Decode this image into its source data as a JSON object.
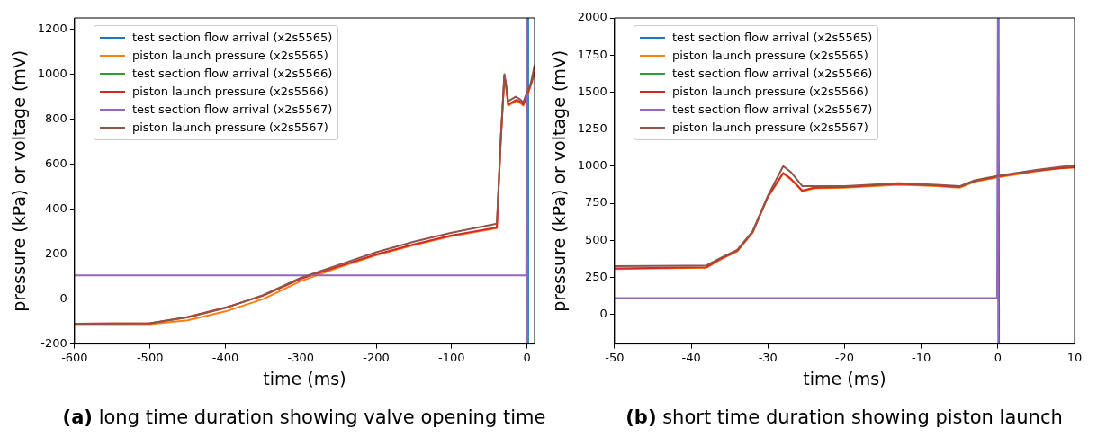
{
  "chart_data": [
    {
      "type": "line",
      "xlabel": "time (ms)",
      "ylabel": "pressure (kPa) or voltage (mV)",
      "annotations": [
        "(a) long time duration showing valve opening time"
      ],
      "xlim": [
        -600,
        10
      ],
      "xticks": [
        -600,
        -500,
        -400,
        -300,
        -200,
        -100,
        0
      ],
      "ylim": [
        -200,
        1250
      ],
      "yticks": [
        -200,
        0,
        200,
        400,
        600,
        800,
        1000,
        1200
      ],
      "legend": "top left",
      "grid": false,
      "marker": "none",
      "line_style": "solid",
      "x": [
        -600,
        -500,
        -450,
        -400,
        -350,
        -300,
        -250,
        -200,
        -150,
        -100,
        -40,
        -35,
        -30,
        -28,
        -25,
        -20,
        -15,
        -10,
        -5,
        0,
        5,
        10
      ],
      "series": [
        {
          "name": "test section flow arrival (x2s5565)",
          "color": "#1f77b4",
          "x": [
            1,
            1.5
          ],
          "values": [
            1250,
            -200
          ]
        },
        {
          "name": "piston launch pressure (x2s5565)",
          "color": "#ff7f0e",
          "values": [
            -112,
            -112,
            -95,
            -55,
            0,
            80,
            140,
            195,
            240,
            280,
            315,
            690,
            990,
            950,
            860,
            870,
            880,
            875,
            860,
            900,
            950,
            1000
          ]
        },
        {
          "name": "test section flow arrival (x2s5566)",
          "color": "#2ca02c",
          "values": [
            null,
            null,
            null,
            null,
            null,
            null,
            null,
            null,
            null,
            null,
            null,
            null,
            null,
            null,
            null,
            null,
            null,
            null,
            null,
            null,
            null,
            null
          ]
        },
        {
          "name": "piston launch pressure (x2s5566)",
          "color": "#d62728",
          "values": [
            -110,
            -108,
            -80,
            -38,
            15,
            90,
            145,
            198,
            243,
            283,
            318,
            695,
            995,
            955,
            865,
            875,
            885,
            880,
            865,
            905,
            955,
            1010
          ]
        },
        {
          "name": "test section flow arrival (x2s5567)",
          "color": "#9467bd",
          "x": [
            -600,
            -1,
            0,
            0.5
          ],
          "values": [
            105,
            105,
            1250,
            -200
          ]
        },
        {
          "name": "piston launch pressure (x2s5567)",
          "color": "#8c564b",
          "values": [
            -110,
            -108,
            -82,
            -40,
            18,
            95,
            152,
            208,
            255,
            295,
            335,
            700,
            1000,
            960,
            880,
            890,
            900,
            890,
            875,
            920,
            960,
            1040
          ]
        }
      ]
    },
    {
      "type": "line",
      "xlabel": "time (ms)",
      "ylabel": "pressure (kPa) or voltage (mV)",
      "annotations": [
        "(b) short time duration showing piston launch"
      ],
      "xlim": [
        -50,
        10
      ],
      "xticks": [
        -50,
        -40,
        -30,
        -20,
        -10,
        0,
        10
      ],
      "ylim": [
        -200,
        2000
      ],
      "yticks": [
        0,
        250,
        500,
        750,
        1000,
        1250,
        1500,
        1750,
        2000
      ],
      "legend": "top left",
      "grid": false,
      "marker": "none",
      "line_style": "solid",
      "x": [
        -50,
        -38,
        -36,
        -34,
        -32,
        -30,
        -28,
        -27,
        -25.5,
        -24,
        -20,
        -13,
        -8,
        -5,
        -3,
        0,
        5,
        8,
        10
      ],
      "series": [
        {
          "name": "test section flow arrival (x2s5565)",
          "color": "#1f77b4",
          "x": [
            0.1,
            0.15
          ],
          "values": [
            2000,
            -200
          ]
        },
        {
          "name": "piston launch pressure (x2s5565)",
          "color": "#ff7f0e",
          "values": [
            305,
            315,
            375,
            425,
            550,
            790,
            950,
            910,
            830,
            850,
            855,
            875,
            865,
            855,
            895,
            925,
            965,
            985,
            990
          ]
        },
        {
          "name": "test section flow arrival (x2s5566)",
          "color": "#2ca02c",
          "values": [
            null,
            null,
            null,
            null,
            null,
            null,
            null,
            null,
            null,
            null,
            null,
            null,
            null,
            null,
            null,
            null,
            null,
            null,
            null
          ]
        },
        {
          "name": "piston launch pressure (x2s5566)",
          "color": "#d62728",
          "values": [
            310,
            318,
            380,
            430,
            555,
            795,
            955,
            915,
            835,
            855,
            860,
            880,
            870,
            860,
            900,
            930,
            970,
            985,
            995
          ]
        },
        {
          "name": "test section flow arrival (x2s5567)",
          "color": "#9467bd",
          "x": [
            -50,
            -0.1,
            0,
            0.05
          ],
          "values": [
            110,
            110,
            2000,
            -200
          ]
        },
        {
          "name": "piston launch pressure (x2s5567)",
          "color": "#8c564b",
          "values": [
            325,
            330,
            385,
            435,
            560,
            800,
            1000,
            960,
            865,
            865,
            865,
            885,
            875,
            865,
            905,
            935,
            975,
            995,
            1005
          ]
        }
      ]
    }
  ]
}
